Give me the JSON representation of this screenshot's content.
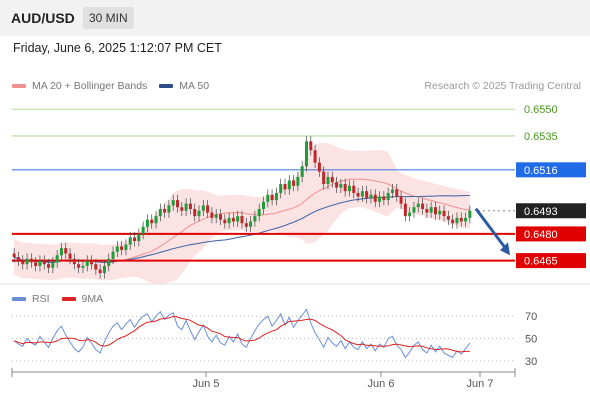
{
  "header": {
    "symbol": "AUD/USD",
    "timeframe": "30 MIN",
    "datetime": "Friday, June 6, 2025 1:12:07 PM CET"
  },
  "legend_main": {
    "items": [
      {
        "label": "MA 20 + Bollinger Bands",
        "color": "#f08f8f"
      },
      {
        "label": "MA 50",
        "color": "#2c4f8a"
      }
    ],
    "credit": "Research © 2025 Trading Central"
  },
  "legend_rsi": {
    "items": [
      {
        "label": "RSI",
        "color": "#6a8fd8"
      },
      {
        "label": "9MA",
        "color": "#dd2222"
      }
    ]
  },
  "price_levels": [
    {
      "value": 0.655,
      "label": "0.6550",
      "kind": "green-text",
      "line_color": "#b5d99c"
    },
    {
      "value": 0.6535,
      "label": "0.6535",
      "kind": "green-text",
      "line_color": "#b5d99c"
    },
    {
      "value": 0.6516,
      "label": "0.6516",
      "kind": "blue-box",
      "line_color": "#4a7fe0"
    },
    {
      "value": 0.6493,
      "label": "0.6493",
      "kind": "current-box",
      "line_color": "#888888"
    },
    {
      "value": 0.648,
      "label": "0.6480",
      "kind": "red-box",
      "line_color": "#e00000"
    },
    {
      "value": 0.6465,
      "label": "0.6465",
      "kind": "red-box",
      "line_color": "#e00000"
    }
  ],
  "rsi_axis": {
    "ticks": [
      "70",
      "50",
      "30"
    ]
  },
  "x_axis": {
    "ticks": [
      "Jun 5",
      "Jun 6",
      "Jun 7"
    ]
  },
  "colors": {
    "up": "#1e9e3a",
    "down": "#c0262a",
    "band_fill": "#fbdcdc",
    "ma50": "#4a6aa8",
    "ma20": "#f08f8f",
    "arrow": "#2c5aa0"
  },
  "chart_data": {
    "type": "candlestick",
    "price_range": [
      0.6453,
      0.6558
    ],
    "rsi_range": [
      20,
      80
    ],
    "ohlc_close_path": [
      0.6467,
      0.6465,
      0.6463,
      0.6466,
      0.6464,
      0.6462,
      0.6465,
      0.6463,
      0.6461,
      0.6464,
      0.6468,
      0.6472,
      0.6469,
      0.6466,
      0.6463,
      0.6461,
      0.6462,
      0.6465,
      0.6463,
      0.646,
      0.6458,
      0.6462,
      0.6466,
      0.647,
      0.6473,
      0.6471,
      0.6474,
      0.6478,
      0.6476,
      0.648,
      0.6484,
      0.6488,
      0.6486,
      0.649,
      0.6494,
      0.6492,
      0.6496,
      0.6499,
      0.6495,
      0.6493,
      0.6497,
      0.6494,
      0.649,
      0.6493,
      0.6496,
      0.6492,
      0.6489,
      0.6491,
      0.6488,
      0.6486,
      0.6489,
      0.6487,
      0.649,
      0.6486,
      0.6484,
      0.6487,
      0.649,
      0.6494,
      0.6498,
      0.6502,
      0.6499,
      0.6503,
      0.6508,
      0.6505,
      0.651,
      0.6507,
      0.6512,
      0.6518,
      0.6532,
      0.6527,
      0.652,
      0.6515,
      0.6508,
      0.6512,
      0.6509,
      0.6506,
      0.6508,
      0.6504,
      0.6507,
      0.6503,
      0.6501,
      0.6504,
      0.65,
      0.6502,
      0.6498,
      0.6501,
      0.6499,
      0.6503,
      0.6505,
      0.6501,
      0.6497,
      0.649,
      0.6492,
      0.6495,
      0.6497,
      0.6494,
      0.6492,
      0.6495,
      0.6491,
      0.6493,
      0.649,
      0.6488,
      0.6486,
      0.6489,
      0.6487,
      0.6489,
      0.6493
    ],
    "rsi": [
      48,
      45,
      43,
      50,
      46,
      44,
      52,
      47,
      42,
      50,
      57,
      61,
      53,
      47,
      41,
      38,
      42,
      51,
      46,
      40,
      37,
      47,
      55,
      61,
      64,
      58,
      63,
      67,
      60,
      66,
      70,
      72,
      65,
      70,
      74,
      67,
      71,
      73,
      61,
      58,
      66,
      57,
      49,
      56,
      62,
      52,
      47,
      53,
      46,
      44,
      52,
      47,
      54,
      45,
      42,
      50,
      57,
      63,
      67,
      70,
      61,
      66,
      72,
      62,
      69,
      60,
      66,
      71,
      76,
      64,
      55,
      49,
      42,
      51,
      46,
      43,
      48,
      41,
      47,
      42,
      40,
      47,
      41,
      45,
      39,
      45,
      42,
      50,
      52,
      44,
      40,
      33,
      38,
      44,
      47,
      40,
      37,
      44,
      38,
      43,
      37,
      35,
      33,
      39,
      36,
      41,
      46
    ]
  }
}
